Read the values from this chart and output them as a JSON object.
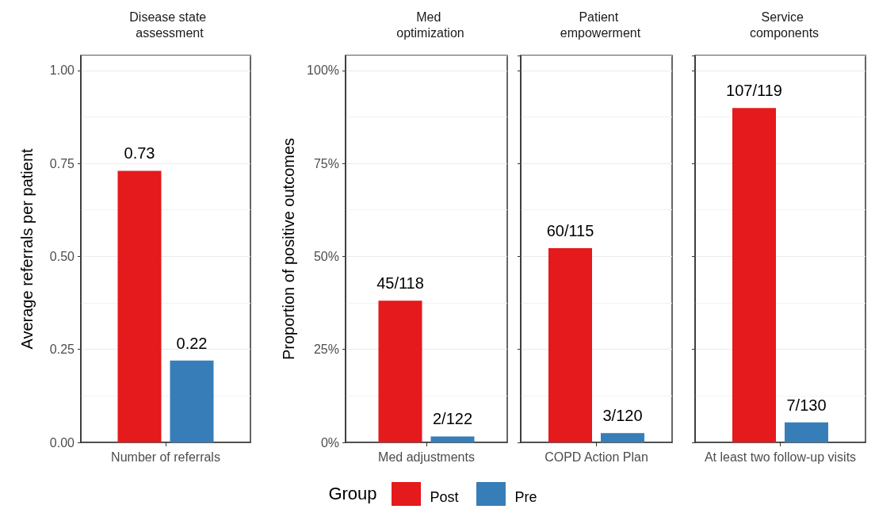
{
  "chart_data": [
    {
      "type": "bar",
      "title": "Disease state assessment",
      "ylabel": "Average referrals per patient",
      "categories": [
        "Number of referrals"
      ],
      "series": [
        {
          "name": "Post",
          "color": "#e41a1c",
          "values": [
            0.73
          ]
        },
        {
          "name": "Pre",
          "color": "#377eb8",
          "values": [
            0.22
          ]
        }
      ],
      "ylim": [
        0,
        1.04
      ],
      "yticks": [
        {
          "value": 0,
          "label": "0.00"
        },
        {
          "value": 0.25,
          "label": "0.25"
        },
        {
          "value": 0.5,
          "label": "0.50"
        },
        {
          "value": 0.75,
          "label": "0.75"
        },
        {
          "value": 1,
          "label": "1.00"
        }
      ],
      "grid": "y",
      "data_labels": true,
      "legend": "bottom",
      "legend_title": "Group"
    },
    {
      "type": "bar",
      "title": "Med optimization",
      "ylabel": "Proportion of positive outcomes",
      "categories": [
        "Med adjustments"
      ],
      "series": [
        {
          "color": "#e41a1c",
          "values": [
            38.1
          ],
          "value_labels": [
            "45/118"
          ]
        },
        {
          "color": "#377eb8",
          "values": [
            1.6
          ],
          "value_labels": [
            "2/122"
          ]
        }
      ],
      "ylim": [
        0,
        104
      ],
      "yticks": [
        {
          "value": 0,
          "label": "0%"
        },
        {
          "value": 25,
          "label": "25%"
        },
        {
          "value": 50,
          "label": "50%"
        },
        {
          "value": 75,
          "label": "75%"
        },
        {
          "value": 100,
          "label": "100%"
        }
      ],
      "grid": "y"
    },
    {
      "type": "bar",
      "title": "Patient empowerment",
      "categories": [
        "COPD Action Plan"
      ],
      "series": [
        {
          "color": "#e41a1c",
          "values": [
            52.2
          ],
          "value_labels": [
            "60/115"
          ]
        },
        {
          "color": "#377eb8",
          "values": [
            2.5
          ],
          "value_labels": [
            "3/120"
          ]
        }
      ],
      "ylim": [
        0,
        104
      ],
      "yticks": [
        {
          "value": 0,
          "label": null
        },
        {
          "value": 25,
          "label": null
        },
        {
          "value": 50,
          "label": null
        },
        {
          "value": 75,
          "label": null
        },
        {
          "value": 100,
          "label": null
        }
      ],
      "grid": "y",
      "tick_labels": "x"
    },
    {
      "type": "bar",
      "title": "Service components",
      "categories": [
        "At least two follow-up visits"
      ],
      "series": [
        {
          "color": "#e41a1c",
          "values": [
            89.9
          ],
          "value_labels": [
            "107/119"
          ]
        },
        {
          "color": "#377eb8",
          "values": [
            5.4
          ],
          "value_labels": [
            "7/130"
          ]
        }
      ],
      "ylim": [
        0,
        104
      ],
      "yticks": [
        {
          "value": 0,
          "label": null
        },
        {
          "value": 25,
          "label": null
        },
        {
          "value": 50,
          "label": null
        },
        {
          "value": 75,
          "label": null
        },
        {
          "value": 100,
          "label": null
        }
      ],
      "grid": "y",
      "tick_labels": "x"
    }
  ]
}
